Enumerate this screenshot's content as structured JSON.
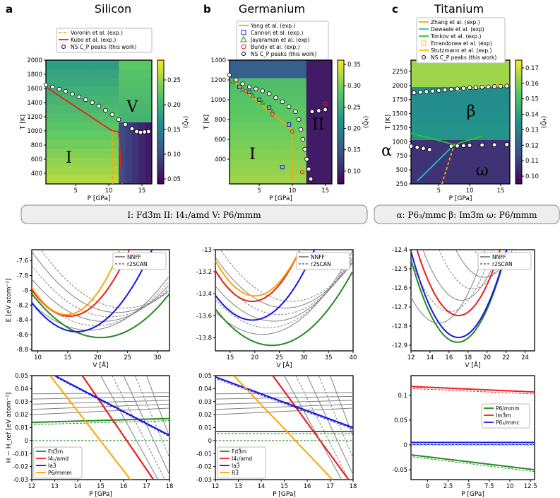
{
  "panel_labels": {
    "a": "a",
    "b": "b",
    "c": "c"
  },
  "titles": {
    "si": "Silicon",
    "ge": "Germanium",
    "ti": "Titanium"
  },
  "axes": {
    "p_gpa": "P [GPa]",
    "t_k": "T [K]",
    "cbar": "⟨Q̄₄⟩",
    "e": "E [eV atom⁻¹]",
    "v": "V [Å]",
    "h": "H − H_ref [eV atom⁻¹]"
  },
  "phase_labels": {
    "si": [
      "I",
      "V"
    ],
    "ge": [
      "I",
      "II"
    ],
    "ti": [
      "β",
      "ω",
      "α"
    ]
  },
  "phase_bars": {
    "si": "I: Fd3̄m    II: I4₁/amd    V: P6/mmm",
    "ti": "α: P6₃/mmc    β: Im3̄m    ω: P6/mmm"
  },
  "legends": {
    "si_top": [
      "Voronin et al. (exp.)",
      "Kubo et al. (exp.)",
      "NS C_P peaks (this work)"
    ],
    "ge_top": [
      "Yang et al. (exp.)",
      "Cannon et al. (exp.)",
      "Jayaraman et al. (exp)",
      "Bundy et al. (exp.)",
      "NS C_P peaks (this work)"
    ],
    "ti_top": [
      "Zhang et al. (exp.)",
      "Dewaele et al. (exp)",
      "Tonkov et al. (exp.)",
      "Errandonea et al. (exp)",
      "Stutzmann et al. (exp.)",
      "NS C_P peaks (this work)"
    ],
    "eos": [
      "NNFF",
      "r2SCAN"
    ],
    "si_h": [
      "Fd3̄m",
      "I4₁/amd",
      "Ia3̄",
      "P6/mmm"
    ],
    "ge_h": [
      "Fd3̄m",
      "I4₁/amd",
      "Ia3̄",
      "R3̄"
    ],
    "ti_h": [
      "P6/mmm",
      "Im3̄m",
      "P6₃/mmc"
    ]
  },
  "colors": {
    "green": "#228b22",
    "red": "#ee1c1c",
    "blue": "#1515e6",
    "orange": "#ffa500",
    "gray": "#808080",
    "cyan": "#20c0d0",
    "lime": "#22cc22",
    "gold": "#ffbf00"
  },
  "chart_data": [
    {
      "id": "si_pd",
      "type": "heatmap",
      "title": "Silicon",
      "xlabel": "P [GPa]",
      "ylabel": "T [K]",
      "xlim": [
        0.5,
        16.5
      ],
      "ylim": [
        250,
        2000
      ],
      "xticks": [
        5,
        10,
        15
      ],
      "yticks": [
        400,
        600,
        800,
        1000,
        1200,
        1400,
        1600,
        1800,
        2000
      ],
      "cbar_ticks": [
        0.05,
        0.1,
        0.15,
        0.2,
        0.25
      ],
      "cbar_range": [
        0.04,
        0.29
      ],
      "ns_peaks": [
        [
          0.5,
          1650
        ],
        [
          1.5,
          1620
        ],
        [
          2.5,
          1590
        ],
        [
          3.5,
          1560
        ],
        [
          4.5,
          1520
        ],
        [
          5.5,
          1480
        ],
        [
          6.5,
          1440
        ],
        [
          7.5,
          1400
        ],
        [
          8.5,
          1350
        ],
        [
          9.5,
          1290
        ],
        [
          10.5,
          1230
        ],
        [
          11.5,
          1160
        ],
        [
          12.5,
          1090
        ],
        [
          13.5,
          1030
        ],
        [
          14.2,
          990
        ],
        [
          14.8,
          980
        ],
        [
          15.4,
          985
        ],
        [
          16,
          990
        ]
      ],
      "kubo": [
        [
          0.5,
          1620
        ],
        [
          10.5,
          1000
        ],
        [
          11.5,
          990
        ],
        [
          12,
          250
        ]
      ],
      "voronin": [
        [
          10.5,
          1000
        ],
        [
          10.6,
          250
        ]
      ]
    },
    {
      "id": "ge_pd",
      "type": "heatmap",
      "title": "Germanium",
      "xlabel": "P [GPa]",
      "ylabel": "T [K]",
      "xlim": [
        0.5,
        16
      ],
      "ylim": [
        150,
        1400
      ],
      "xticks": [
        5,
        10,
        15
      ],
      "yticks": [
        400,
        600,
        800,
        1000,
        1200,
        1400
      ],
      "cbar_ticks": [
        0.1,
        0.15,
        0.2,
        0.25,
        0.3,
        0.35
      ],
      "cbar_range": [
        0.07,
        0.36
      ],
      "ns_peaks": [
        [
          0.5,
          1250
        ],
        [
          1.5,
          1200
        ],
        [
          2.5,
          1160
        ],
        [
          3.5,
          1130
        ],
        [
          4.5,
          1110
        ],
        [
          5.5,
          1090
        ],
        [
          6.5,
          1060
        ],
        [
          7.5,
          1020
        ],
        [
          8.5,
          980
        ],
        [
          9.5,
          930
        ],
        [
          10.5,
          880
        ],
        [
          11,
          800
        ],
        [
          11.3,
          700
        ],
        [
          11.6,
          600
        ],
        [
          11.9,
          500
        ],
        [
          12.2,
          400
        ],
        [
          12.5,
          300
        ],
        [
          12.8,
          200
        ],
        [
          13,
          880
        ],
        [
          14,
          890
        ],
        [
          15,
          900
        ]
      ],
      "yang": [
        [
          0.8,
          1200
        ],
        [
          9.9,
          700
        ],
        [
          10,
          200
        ]
      ],
      "cannon": [
        [
          2,
          1130
        ],
        [
          3.5,
          1080
        ],
        [
          5,
          1000
        ],
        [
          6.5,
          920
        ],
        [
          9.5,
          750
        ],
        [
          8.5,
          320
        ]
      ],
      "jayaraman": [
        [
          1,
          1180
        ],
        [
          2.5,
          1100
        ],
        [
          4,
          1040
        ],
        [
          5.5,
          970
        ],
        [
          7,
          880
        ]
      ],
      "bundy": [
        [
          3,
          1090
        ],
        [
          7,
          850
        ],
        [
          10,
          680
        ],
        [
          11.5,
          270
        ],
        [
          15,
          960
        ]
      ]
    },
    {
      "id": "ti_pd",
      "type": "heatmap",
      "title": "Titanium",
      "xlabel": "P [GPa]",
      "ylabel": "T [K]",
      "xlim": [
        0.5,
        16.5
      ],
      "ylim": [
        250,
        2450
      ],
      "xticks": [
        5,
        10,
        15
      ],
      "yticks": [
        250,
        500,
        750,
        1000,
        1250,
        1500,
        1750,
        2000,
        2250
      ],
      "cbar_ticks": [
        0.1,
        0.11,
        0.12,
        0.13,
        0.14,
        0.15,
        0.16,
        0.17
      ],
      "cbar_range": [
        0.095,
        0.175
      ],
      "ns_peaks": [
        [
          1,
          1870
        ],
        [
          2,
          1880
        ],
        [
          3,
          1890
        ],
        [
          4,
          1900
        ],
        [
          5,
          1910
        ],
        [
          6,
          1920
        ],
        [
          7,
          1930
        ],
        [
          8,
          1940
        ],
        [
          9,
          1950
        ],
        [
          10,
          1960
        ],
        [
          11,
          1960
        ],
        [
          12,
          1970
        ],
        [
          13,
          1975
        ],
        [
          14,
          1980
        ],
        [
          15,
          1985
        ],
        [
          16,
          1990
        ],
        [
          0.5,
          920
        ],
        [
          1.5,
          900
        ],
        [
          2.5,
          880
        ],
        [
          3.5,
          860
        ],
        [
          7,
          920
        ],
        [
          8,
          925
        ],
        [
          9,
          930
        ],
        [
          10,
          935
        ],
        [
          12,
          940
        ],
        [
          14,
          945
        ],
        [
          16,
          950
        ]
      ],
      "zhang": [
        [
          8,
          1900
        ],
        [
          16,
          2050
        ]
      ],
      "tonkov": [
        [
          0.5,
          1150
        ],
        [
          7.5,
          950
        ],
        [
          12,
          1100
        ]
      ],
      "dewaele": [
        [
          1.5,
          300
        ],
        [
          7.5,
          950
        ]
      ],
      "stutzmann": [
        [
          5.5,
          250
        ],
        [
          7.5,
          950
        ]
      ]
    },
    {
      "id": "si_eos",
      "type": "line",
      "xlabel": "V [Å]",
      "ylabel": "E [eV atom⁻¹]",
      "xlim": [
        9,
        32
      ],
      "ylim": [
        -8.82,
        -7.45
      ],
      "xticks": [
        10,
        15,
        20,
        25,
        30
      ],
      "yticks": [
        -8.8,
        -8.6,
        -8.4,
        -8.2,
        -8.0,
        -7.8,
        -7.6
      ],
      "series": [
        {
          "name": "green",
          "v0": 20.5,
          "e0": -8.64,
          "a": 0.0045
        },
        {
          "name": "blue",
          "v0": 16.5,
          "e0": -8.56,
          "a": 0.007
        },
        {
          "name": "red",
          "v0": 15.3,
          "e0": -8.35,
          "a": 0.009
        },
        {
          "name": "orange",
          "v0": 14.8,
          "e0": -8.33,
          "a": 0.011
        }
      ]
    },
    {
      "id": "ge_eos",
      "type": "line",
      "xlabel": "V [Å]",
      "ylabel": "",
      "xlim": [
        12,
        40
      ],
      "ylim": [
        -13.92,
        -13.0
      ],
      "xticks": [
        15,
        20,
        25,
        30,
        35,
        40
      ],
      "yticks": [
        -13.8,
        -13.6,
        -13.4,
        -13.2,
        -13.0
      ],
      "series": [
        {
          "name": "green",
          "v0": 23.5,
          "e0": -13.87,
          "a": 0.0025
        },
        {
          "name": "blue",
          "v0": 19.5,
          "e0": -13.64,
          "a": 0.004
        },
        {
          "name": "red",
          "v0": 19.5,
          "e0": -13.47,
          "a": 0.005
        },
        {
          "name": "orange",
          "v0": 20,
          "e0": -13.42,
          "a": 0.005
        }
      ]
    },
    {
      "id": "ti_eos",
      "type": "line",
      "xlabel": "V [Å]",
      "ylabel": "",
      "xlim": [
        12,
        25
      ],
      "ylim": [
        -12.93,
        -12.4
      ],
      "xticks": [
        12,
        14,
        16,
        18,
        20,
        22,
        24
      ],
      "yticks": [
        -12.9,
        -12.8,
        -12.7,
        -12.6,
        -12.5,
        -12.4
      ],
      "series": [
        {
          "name": "green",
          "v0": 16.9,
          "e0": -12.885,
          "a": 0.018
        },
        {
          "name": "blue",
          "v0": 17,
          "e0": -12.86,
          "a": 0.018
        },
        {
          "name": "red",
          "v0": 17,
          "e0": -12.745,
          "a": 0.018
        }
      ]
    },
    {
      "id": "si_h",
      "type": "line",
      "xlabel": "P [GPa]",
      "ylabel": "H − H_ref [eV atom⁻¹]",
      "xlim": [
        12,
        18
      ],
      "ylim": [
        -0.03,
        0.05
      ],
      "xticks": [
        12,
        13,
        14,
        15,
        16,
        17,
        18
      ],
      "yticks": [
        -0.03,
        -0.02,
        -0.01,
        0.0,
        0.01,
        0.02,
        0.03,
        0.04,
        0.05
      ],
      "series": [
        {
          "name": "green",
          "pts": [
            [
              12,
              0.014
            ],
            [
              18,
              0.017
            ]
          ]
        },
        {
          "name": "red",
          "pts": [
            [
              14.2,
              0.05
            ],
            [
              17.3,
              -0.03
            ]
          ]
        },
        {
          "name": "blue",
          "pts": [
            [
              13,
              0.05
            ],
            [
              18,
              0.004
            ]
          ]
        },
        {
          "name": "orange",
          "pts": [
            [
              12.8,
              0.05
            ],
            [
              16.3,
              -0.03
            ]
          ]
        }
      ]
    },
    {
      "id": "ge_h",
      "type": "line",
      "xlabel": "P [GPa]",
      "ylabel": "",
      "xlim": [
        12,
        18
      ],
      "ylim": [
        -0.03,
        0.05
      ],
      "xticks": [
        12,
        13,
        14,
        15,
        16,
        17,
        18
      ],
      "yticks": [
        -0.03,
        -0.02,
        -0.01,
        0.0,
        0.01,
        0.02,
        0.03,
        0.04,
        0.05
      ],
      "series": [
        {
          "name": "green",
          "pts": [
            [
              12,
              0.007
            ],
            [
              18,
              0.007
            ]
          ]
        },
        {
          "name": "red",
          "pts": [
            [
              14.5,
              0.05
            ],
            [
              17.8,
              -0.03
            ]
          ]
        },
        {
          "name": "blue",
          "pts": [
            [
              12,
              0.049
            ],
            [
              18,
              0.01
            ]
          ]
        },
        {
          "name": "orange",
          "pts": [
            [
              12.8,
              0.05
            ],
            [
              17.1,
              -0.03
            ]
          ]
        }
      ]
    },
    {
      "id": "ti_h",
      "type": "line",
      "xlabel": "P [GPa]",
      "ylabel": "",
      "xlim": [
        -2,
        13
      ],
      "ylim": [
        -0.07,
        0.14
      ],
      "xticks": [
        0,
        2.5,
        5,
        7.5,
        10,
        12.5
      ],
      "yticks": [
        -0.05,
        0,
        0.05,
        0.1
      ],
      "series": [
        {
          "name": "green",
          "pts": [
            [
              -2,
              -0.02
            ],
            [
              13,
              -0.05
            ]
          ]
        },
        {
          "name": "red",
          "pts": [
            [
              -2,
              0.118
            ],
            [
              13,
              0.107
            ]
          ]
        },
        {
          "name": "blue",
          "pts": [
            [
              -2,
              0.005
            ],
            [
              13,
              0.005
            ]
          ]
        }
      ]
    }
  ]
}
